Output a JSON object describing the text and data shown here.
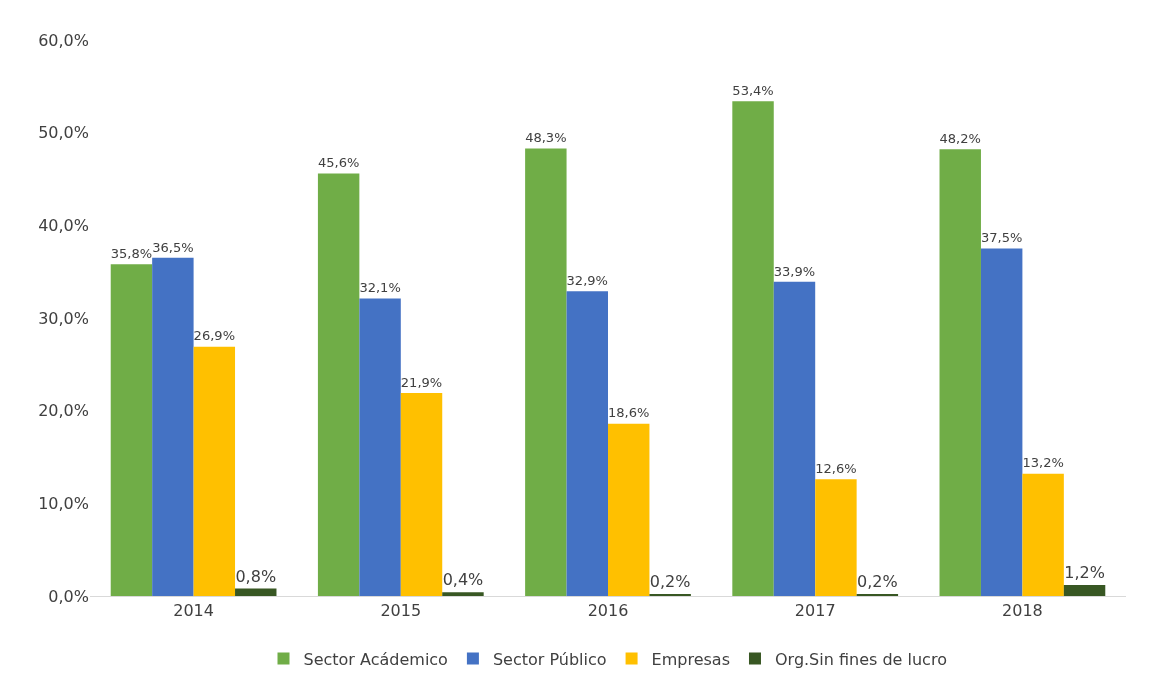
{
  "chart_data": {
    "type": "bar",
    "categories": [
      "2014",
      "2015",
      "2016",
      "2017",
      "2018"
    ],
    "series": [
      {
        "name": "Sector Acádemico",
        "color": "#70ad47",
        "values": [
          35.8,
          45.6,
          48.3,
          53.4,
          48.2
        ],
        "value_labels": [
          "35,8%",
          "45,6%",
          "48,3%",
          "53,4%",
          "48,2%"
        ]
      },
      {
        "name": "Sector Público",
        "color": "#4472c4",
        "values": [
          36.5,
          32.1,
          32.9,
          33.9,
          37.5
        ],
        "value_labels": [
          "36,5%",
          "32,1%",
          "32,9%",
          "33,9%",
          "37,5%"
        ]
      },
      {
        "name": "Empresas",
        "color": "#ffc000",
        "values": [
          26.9,
          21.9,
          18.6,
          12.6,
          13.2
        ],
        "value_labels": [
          "26,9%",
          "21,9%",
          "18,6%",
          "12,6%",
          "13,2%"
        ]
      },
      {
        "name": "Org.Sin fines de lucro",
        "color": "#385723",
        "values": [
          0.8,
          0.4,
          0.2,
          0.2,
          1.2
        ],
        "value_labels": [
          "0,8%",
          "0,4%",
          "0,2%",
          "0,2%",
          "1,2%"
        ]
      }
    ],
    "ylim": [
      0,
      60
    ],
    "yticks": [
      {
        "value": 0,
        "label": "0,0%"
      },
      {
        "value": 10,
        "label": "10,0%"
      },
      {
        "value": 20,
        "label": "20,0%"
      },
      {
        "value": 30,
        "label": "30,0%"
      },
      {
        "value": 40,
        "label": "40,0%"
      },
      {
        "value": 50,
        "label": "50,0%"
      },
      {
        "value": 60,
        "label": "60,0%"
      }
    ],
    "grid": false,
    "legend": "bottom"
  }
}
